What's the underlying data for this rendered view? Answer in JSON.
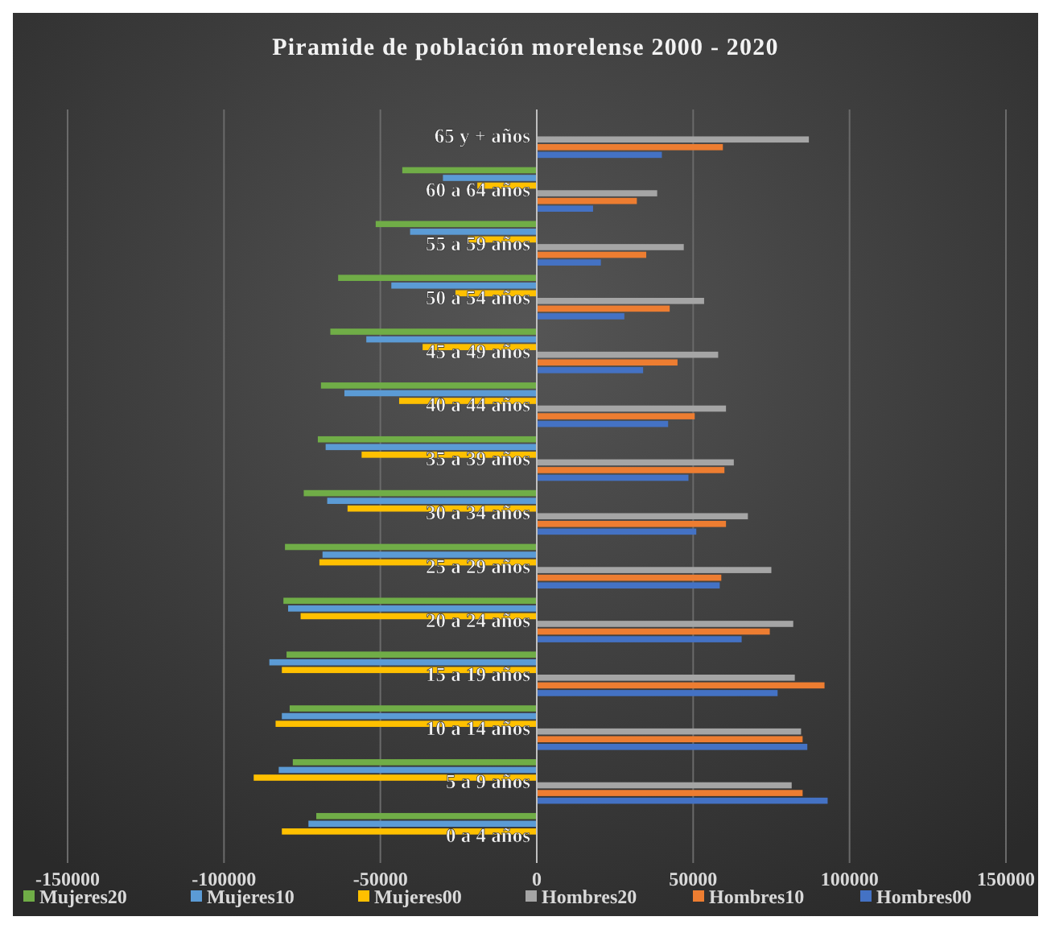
{
  "chart_data": {
    "type": "bar",
    "orientation": "horizontal",
    "title": "Piramide de población morelense 2000 - 2020",
    "categories": [
      "65 y + años",
      "60 a 64 años",
      "55 a 59 años",
      "50 a 54 años",
      "45 a 49 años",
      "40 a 44 años",
      "35 a 39 años",
      "30 a 34 años",
      "25 a 29 años",
      "20 a 24 años",
      "15 a 19 años",
      "10 a 14 años",
      "5 a 9 años",
      "0 a 4 años"
    ],
    "series": [
      {
        "name": "Mujeres20",
        "color": "#70ad47",
        "values": [
          null,
          -43000,
          -51500,
          -63500,
          -66000,
          -69000,
          -70000,
          -74500,
          -80500,
          -81000,
          -80000,
          -79000,
          -78000,
          -70500
        ]
      },
      {
        "name": "Mujeres10",
        "color": "#5b9bd5",
        "values": [
          null,
          -30000,
          -40500,
          -46500,
          -54500,
          -61500,
          -67500,
          -67000,
          -68500,
          -79500,
          -85500,
          -81500,
          -82500,
          -73000
        ]
      },
      {
        "name": "Mujeres00",
        "color": "#ffc000",
        "values": [
          null,
          -19000,
          -22000,
          -26000,
          -36500,
          -44000,
          -56000,
          -60500,
          -69500,
          -75500,
          -81500,
          -83500,
          -90500,
          -81500
        ]
      },
      {
        "name": "Hombres20",
        "color": "#a5a5a5",
        "values": [
          87000,
          38500,
          47000,
          53500,
          58000,
          60500,
          63000,
          67500,
          75000,
          82000,
          82500,
          84500,
          81500,
          null
        ]
      },
      {
        "name": "Hombres10",
        "color": "#ed7d31",
        "values": [
          59500,
          32000,
          35000,
          42500,
          45000,
          50500,
          60000,
          60500,
          59000,
          74500,
          92000,
          85000,
          85000,
          null
        ]
      },
      {
        "name": "Hombres00",
        "color": "#4472c4",
        "values": [
          40000,
          18000,
          20500,
          28000,
          34000,
          42000,
          48500,
          51000,
          58500,
          65500,
          77000,
          86500,
          93000,
          null
        ]
      }
    ],
    "xlim": [
      -150000,
      150000
    ],
    "xticks": [
      -150000,
      -100000,
      -50000,
      0,
      50000,
      100000,
      150000
    ],
    "grid": "x",
    "legend": "bottom"
  }
}
